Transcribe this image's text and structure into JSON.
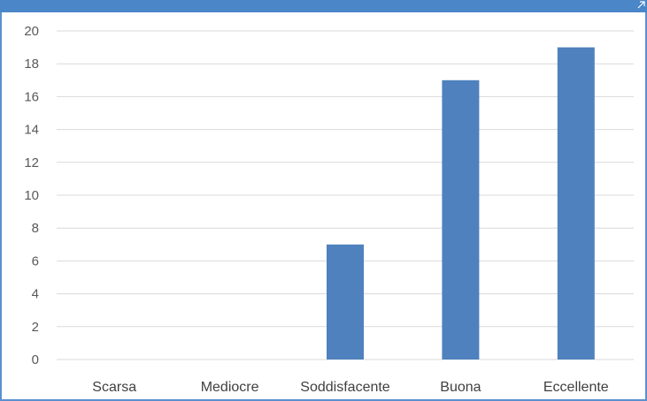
{
  "chart_data": {
    "type": "bar",
    "categories": [
      "Scarsa",
      "Mediocre",
      "Soddisfacente",
      "Buona",
      "Eccellente"
    ],
    "values": [
      0,
      0,
      7,
      17,
      19
    ],
    "title": "",
    "xlabel": "",
    "ylabel": "",
    "ylim": [
      0,
      20
    ],
    "yticks": [
      "0",
      "2",
      "4",
      "6",
      "8",
      "10",
      "12",
      "14",
      "16",
      "18",
      "20"
    ],
    "grid": true,
    "legend": "none",
    "bar_color": "#4e81bd",
    "grid_color": "#d9d9d9"
  },
  "frame": {
    "accent_color": "#4a86c8"
  }
}
